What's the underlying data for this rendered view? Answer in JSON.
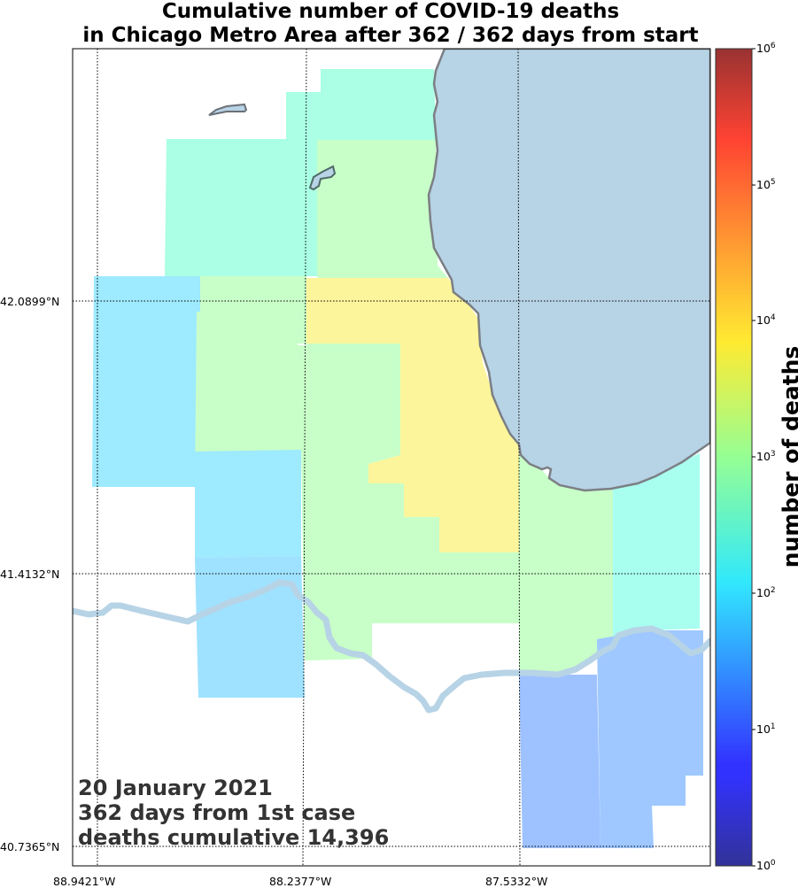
{
  "title": {
    "line1": "Cumulative number of COVID-19 deaths",
    "line2": "in Chicago Metro Area after 362 / 362 days from start"
  },
  "chart_data": {
    "type": "choropleth-map",
    "region": "Chicago Metro Area",
    "lat_ticks": [
      "42.0899°N",
      "41.4132°N",
      "40.7365°N"
    ],
    "lon_ticks": [
      "88.9421°W",
      "88.2377°W",
      "87.5332°W"
    ],
    "colorbar": {
      "label": "number of deaths",
      "scale": "log",
      "range": [
        1,
        1000000
      ],
      "ticks": [
        {
          "base": "10",
          "exp": "0"
        },
        {
          "base": "10",
          "exp": "1"
        },
        {
          "base": "10",
          "exp": "2"
        },
        {
          "base": "10",
          "exp": "3"
        },
        {
          "base": "10",
          "exp": "4"
        },
        {
          "base": "10",
          "exp": "5"
        },
        {
          "base": "10",
          "exp": "6"
        }
      ],
      "colormap": "jet"
    },
    "grid": true
  },
  "info": {
    "date": "20 January 2021",
    "days": "362 days from 1st case",
    "deaths": "deaths cumulative 14,396"
  },
  "colors": {
    "lake": "#b7d3e6",
    "river": "#b7d3e6",
    "coastline": "#7b7f84"
  }
}
